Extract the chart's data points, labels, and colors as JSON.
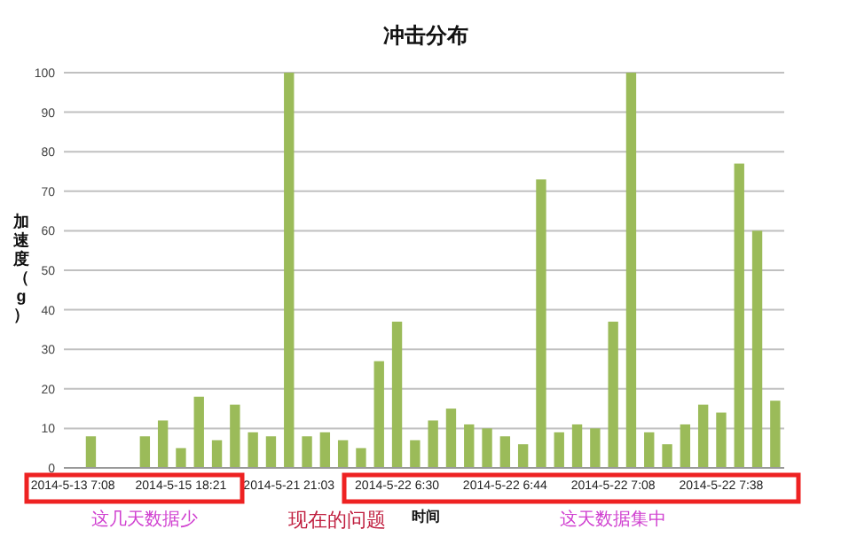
{
  "chart_data": {
    "type": "bar",
    "title": "冲击分布",
    "xlabel": "时间",
    "ylabel": "加速度（g）",
    "categories": [
      "2014-5-13 7:08",
      null,
      null,
      null,
      null,
      null,
      "2014-5-15 18:21",
      null,
      null,
      null,
      null,
      null,
      "2014-5-21 21:03",
      null,
      null,
      null,
      null,
      null,
      "2014-5-22 6:30",
      null,
      null,
      null,
      null,
      null,
      "2014-5-22 6:44",
      null,
      null,
      null,
      null,
      null,
      "2014-5-22 7:08",
      null,
      null,
      null,
      null,
      null,
      "2014-5-22 7:38",
      null,
      null,
      null
    ],
    "values": [
      0,
      8,
      0,
      0,
      8,
      12,
      5,
      18,
      7,
      16,
      9,
      8,
      100,
      8,
      9,
      7,
      5,
      27,
      37,
      7,
      12,
      15,
      11,
      10,
      8,
      6,
      73,
      9,
      11,
      10,
      37,
      100,
      9,
      6,
      11,
      16,
      14,
      77,
      60,
      17
    ],
    "color": "#9bbb59",
    "ylim": [
      0,
      100
    ],
    "yticks": [
      0,
      10,
      20,
      30,
      40,
      50,
      60,
      70,
      80,
      90,
      100
    ],
    "grid": "y",
    "annotations": [
      "这几天数据少",
      "现在的问题",
      "这天数据集中"
    ]
  }
}
